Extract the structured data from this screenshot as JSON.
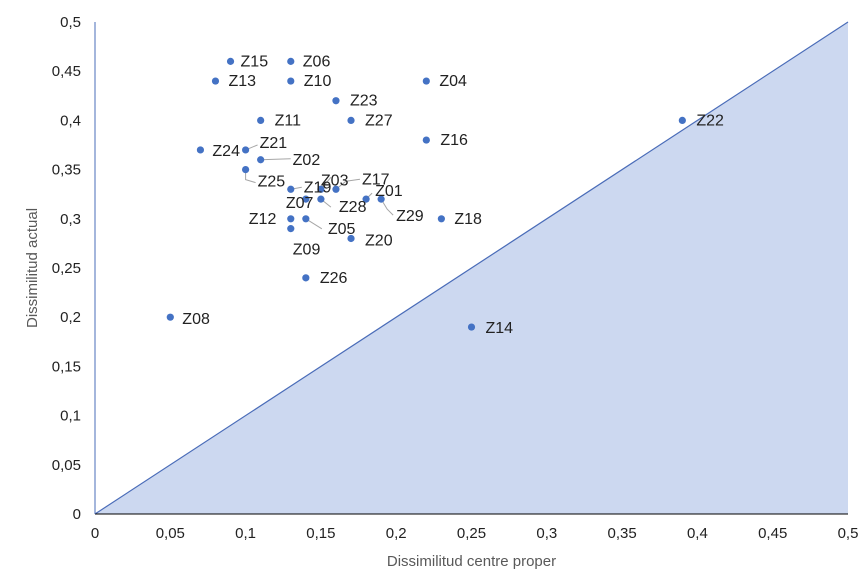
{
  "chart_data": {
    "type": "scatter",
    "title": "",
    "xlabel": "Dissimilitud centre proper",
    "ylabel": "Dissimilitud actual",
    "xlim": [
      0,
      0.5
    ],
    "ylim": [
      0,
      0.5
    ],
    "x_ticks": [
      "0",
      "0,05",
      "0,1",
      "0,15",
      "0,2",
      "0,25",
      "0,3",
      "0,35",
      "0,4",
      "0,45",
      "0,5"
    ],
    "y_ticks": [
      "0",
      "0,05",
      "0,1",
      "0,15",
      "0,2",
      "0,25",
      "0,3",
      "0,35",
      "0,4",
      "0,45",
      "0,5"
    ],
    "grid": false,
    "shaded_region": "area below the diagonal y = x",
    "colors": {
      "points": "#4472C4",
      "fill": "#CCD8F0",
      "diagonal": "#4A6CB8",
      "axis": "#000000",
      "leader": "#A6A6A6"
    },
    "points": [
      {
        "label": "Z15",
        "x": 0.09,
        "y": 0.46
      },
      {
        "label": "Z06",
        "x": 0.13,
        "y": 0.46
      },
      {
        "label": "Z13",
        "x": 0.08,
        "y": 0.44
      },
      {
        "label": "Z10",
        "x": 0.13,
        "y": 0.44
      },
      {
        "label": "Z04",
        "x": 0.22,
        "y": 0.44
      },
      {
        "label": "Z23",
        "x": 0.16,
        "y": 0.42
      },
      {
        "label": "Z11",
        "x": 0.11,
        "y": 0.4
      },
      {
        "label": "Z27",
        "x": 0.17,
        "y": 0.4
      },
      {
        "label": "Z22",
        "x": 0.39,
        "y": 0.4
      },
      {
        "label": "Z16",
        "x": 0.22,
        "y": 0.38
      },
      {
        "label": "Z24",
        "x": 0.07,
        "y": 0.37
      },
      {
        "label": "Z21",
        "x": 0.1,
        "y": 0.37
      },
      {
        "label": "Z02",
        "x": 0.11,
        "y": 0.36
      },
      {
        "label": "Z25",
        "x": 0.1,
        "y": 0.35
      },
      {
        "label": "Z19",
        "x": 0.13,
        "y": 0.33
      },
      {
        "label": "Z03",
        "x": 0.15,
        "y": 0.33
      },
      {
        "label": "Z17",
        "x": 0.16,
        "y": 0.33
      },
      {
        "label": "Z01",
        "x": 0.18,
        "y": 0.32
      },
      {
        "label": "Z28",
        "x": 0.15,
        "y": 0.32
      },
      {
        "label": "Z29",
        "x": 0.19,
        "y": 0.32
      },
      {
        "label": "Z07",
        "x": 0.14,
        "y": 0.32
      },
      {
        "label": "Z18",
        "x": 0.23,
        "y": 0.3
      },
      {
        "label": "Z12",
        "x": 0.13,
        "y": 0.3
      },
      {
        "label": "Z05",
        "x": 0.14,
        "y": 0.3
      },
      {
        "label": "Z09",
        "x": 0.13,
        "y": 0.29
      },
      {
        "label": "Z20",
        "x": 0.17,
        "y": 0.28
      },
      {
        "label": "Z26",
        "x": 0.14,
        "y": 0.24
      },
      {
        "label": "Z08",
        "x": 0.05,
        "y": 0.2
      },
      {
        "label": "Z14",
        "x": 0.25,
        "y": 0.19
      }
    ]
  }
}
